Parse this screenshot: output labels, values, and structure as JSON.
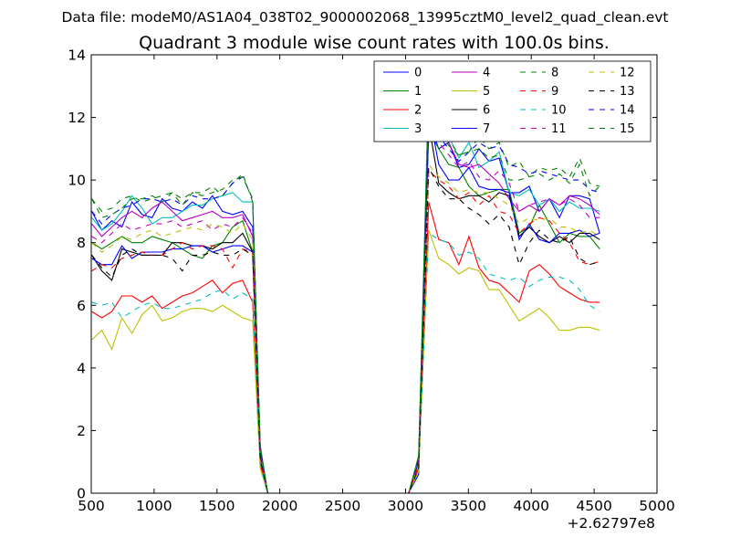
{
  "figure": {
    "supertitle": "Data file: modeM0/AS1A04_038T02_9000002068_13995cztM0_level2_quad_clean.evt"
  },
  "chart_data": {
    "type": "line",
    "title": "Quadrant 3 module wise count rates with 100.0s bins.",
    "xlabel": "",
    "ylabel": "",
    "x_offset_label": "+2.62797e8",
    "xlim": [
      500,
      5000
    ],
    "ylim": [
      0,
      14
    ],
    "xticks": [
      500,
      1000,
      1500,
      2000,
      2500,
      3000,
      3500,
      4000,
      4500,
      5000
    ],
    "yticks": [
      0,
      2,
      4,
      6,
      8,
      10,
      12,
      14
    ],
    "legend_position": "top-right",
    "legend_columns": 4,
    "x": [
      504,
      584,
      664,
      744,
      824,
      904,
      984,
      1064,
      1144,
      1224,
      1304,
      1384,
      1464,
      1544,
      1624,
      1704,
      1784,
      1844,
      1904,
      1984,
      2064,
      2144,
      2224,
      2304,
      2384,
      2464,
      2544,
      2624,
      2704,
      2784,
      2864,
      2944,
      3024,
      3104,
      3184,
      3264,
      3344,
      3424,
      3504,
      3584,
      3664,
      3744,
      3824,
      3904,
      3984,
      4064,
      4144,
      4224,
      4304,
      4384,
      4464,
      4544
    ],
    "series": [
      {
        "name": "0",
        "color": "#0000ff",
        "dash": "solid",
        "values": [
          9.0,
          8.4,
          8.7,
          8.5,
          9.3,
          8.9,
          8.8,
          9.4,
          9.1,
          9.0,
          9.3,
          9.1,
          9.5,
          9.0,
          8.9,
          9.0,
          8.5,
          1.5,
          0.0,
          0,
          0,
          0,
          0,
          0,
          0,
          0,
          0,
          0,
          0,
          0,
          0,
          0,
          0.0,
          0.6,
          11.9,
          11.0,
          11.2,
          10.4,
          10.5,
          11.0,
          10.6,
          10.7,
          9.6,
          9.6,
          9.8,
          9.0,
          9.4,
          8.8,
          9.5,
          9.5,
          9.4,
          8.3
        ]
      },
      {
        "name": "1",
        "color": "#008000",
        "dash": "solid",
        "values": [
          8.0,
          7.8,
          8.0,
          8.2,
          8.0,
          8.0,
          8.2,
          8.1,
          8.0,
          7.8,
          7.6,
          7.5,
          7.9,
          8.0,
          8.5,
          8.7,
          7.7,
          1.0,
          0.0,
          0,
          0,
          0,
          0,
          0,
          0,
          0,
          0,
          0,
          0,
          0,
          0,
          0,
          0.0,
          0.9,
          11.6,
          11.0,
          10.5,
          10.4,
          9.8,
          9.5,
          9.6,
          9.7,
          9.7,
          8.3,
          8.5,
          9.2,
          8.6,
          8.0,
          8.3,
          8.2,
          8.2,
          7.8
        ]
      },
      {
        "name": "2",
        "color": "#ff0000",
        "dash": "solid",
        "values": [
          5.8,
          5.6,
          5.8,
          6.3,
          6.3,
          6.1,
          6.3,
          5.9,
          6.1,
          6.3,
          6.4,
          6.6,
          6.8,
          6.4,
          6.7,
          6.8,
          6.1,
          0.9,
          0.0,
          0,
          0,
          0,
          0,
          0,
          0,
          0,
          0,
          0,
          0,
          0,
          0,
          0,
          0.0,
          0.8,
          9.3,
          8.1,
          8.0,
          7.3,
          8.2,
          7.2,
          6.8,
          6.7,
          6.4,
          6.1,
          7.1,
          7.3,
          7.0,
          6.6,
          6.4,
          6.2,
          6.1,
          6.1
        ]
      },
      {
        "name": "3",
        "color": "#00bfbf",
        "dash": "solid",
        "values": [
          8.8,
          8.4,
          8.6,
          9.0,
          9.5,
          9.1,
          8.6,
          8.8,
          8.8,
          9.0,
          9.2,
          9.2,
          9.4,
          9.5,
          9.6,
          9.3,
          9.3,
          1.4,
          0.0,
          0,
          0,
          0,
          0,
          0,
          0,
          0,
          0,
          0,
          0,
          0,
          0,
          0,
          0.0,
          1.0,
          13.2,
          12.2,
          11.4,
          10.7,
          11.2,
          10.4,
          10.6,
          10.9,
          9.6,
          9.5,
          9.7,
          9.2,
          9.4,
          9.0,
          9.3,
          9.1,
          9.1,
          9.0
        ]
      },
      {
        "name": "4",
        "color": "#bf00bf",
        "dash": "solid",
        "values": [
          8.6,
          8.2,
          8.5,
          8.8,
          9.0,
          8.8,
          9.1,
          9.3,
          9.0,
          8.7,
          8.8,
          8.9,
          9.0,
          8.8,
          8.8,
          8.9,
          8.2,
          1.3,
          0.0,
          0,
          0,
          0,
          0,
          0,
          0,
          0,
          0,
          0,
          0,
          0,
          0,
          0,
          0.0,
          0.9,
          11.8,
          12.3,
          11.2,
          10.5,
          10.4,
          10.5,
          10.2,
          9.9,
          9.4,
          9.0,
          9.2,
          9.0,
          9.4,
          9.2,
          9.5,
          9.4,
          9.2,
          8.9
        ]
      },
      {
        "name": "5",
        "color": "#bfbf00",
        "dash": "solid",
        "values": [
          4.9,
          5.2,
          4.6,
          5.6,
          5.1,
          5.7,
          6.0,
          5.5,
          5.6,
          5.8,
          5.9,
          5.9,
          5.8,
          6.0,
          5.8,
          5.6,
          5.5,
          0.8,
          0.0,
          0,
          0,
          0,
          0,
          0,
          0,
          0,
          0,
          0,
          0,
          0,
          0,
          0,
          0.0,
          0.7,
          8.4,
          7.5,
          7.3,
          7.0,
          7.2,
          7.1,
          6.5,
          6.5,
          6.0,
          5.5,
          5.7,
          5.9,
          5.6,
          5.2,
          5.2,
          5.3,
          5.3,
          5.2
        ]
      },
      {
        "name": "6",
        "color": "#000000",
        "dash": "solid",
        "values": [
          7.6,
          7.1,
          6.8,
          7.8,
          7.7,
          7.6,
          7.6,
          7.6,
          8.0,
          8.0,
          7.9,
          7.9,
          7.8,
          8.0,
          8.0,
          8.3,
          7.7,
          1.2,
          0.0,
          0,
          0,
          0,
          0,
          0,
          0,
          0,
          0,
          0,
          0,
          0,
          0,
          0,
          0.0,
          1.0,
          11.8,
          9.9,
          9.6,
          9.4,
          9.5,
          9.5,
          9.3,
          9.6,
          9.5,
          8.2,
          8.5,
          8.2,
          8.0,
          8.2,
          8.0,
          8.3,
          8.3,
          8.1
        ]
      },
      {
        "name": "7",
        "color": "#0000ff",
        "dash": "solid",
        "values": [
          7.5,
          7.3,
          7.3,
          7.9,
          7.5,
          7.7,
          7.7,
          7.7,
          7.8,
          7.8,
          7.9,
          7.9,
          7.7,
          7.8,
          7.9,
          7.9,
          7.7,
          1.2,
          0.0,
          0,
          0,
          0,
          0,
          0,
          0,
          0,
          0,
          0,
          0,
          0,
          0,
          0,
          0.0,
          1.0,
          12.2,
          10.5,
          10.0,
          10.0,
          10.4,
          9.8,
          9.7,
          9.7,
          9.6,
          8.1,
          8.6,
          8.1,
          8.0,
          8.3,
          8.3,
          8.4,
          8.2,
          8.3
        ]
      },
      {
        "name": "8",
        "color": "#008000",
        "dash": "dashed",
        "values": [
          9.4,
          9.0,
          9.1,
          9.4,
          9.5,
          9.3,
          9.4,
          9.5,
          9.6,
          9.4,
          9.6,
          9.6,
          9.8,
          9.5,
          9.9,
          10.2,
          9.3,
          1.5,
          0.0,
          0,
          0,
          0,
          0,
          0,
          0,
          0,
          0,
          0,
          0,
          0,
          0,
          0,
          0.0,
          1.2,
          12.8,
          11.9,
          11.3,
          10.8,
          10.9,
          11.4,
          11.0,
          11.2,
          10.4,
          10.6,
          10.1,
          10.4,
          10.3,
          10.4,
          10.1,
          10.7,
          9.9,
          9.8
        ]
      },
      {
        "name": "9",
        "color": "#ff0000",
        "dash": "dashed",
        "values": [
          7.1,
          7.3,
          7.2,
          7.5,
          7.6,
          7.7,
          7.6,
          7.6,
          7.8,
          8.0,
          7.8,
          7.9,
          7.9,
          7.8,
          7.2,
          7.8,
          7.7,
          1.1,
          0.0,
          0,
          0,
          0,
          0,
          0,
          0,
          0,
          0,
          0,
          0,
          0,
          0,
          0,
          0.0,
          0.9,
          10.3,
          10.0,
          9.8,
          9.4,
          9.6,
          9.2,
          9.5,
          9.0,
          8.9,
          8.3,
          8.6,
          8.8,
          8.7,
          8.3,
          8.0,
          7.4,
          7.3,
          7.4
        ]
      },
      {
        "name": "10",
        "color": "#00bfbf",
        "dash": "dashed",
        "values": [
          6.1,
          6.0,
          6.1,
          5.6,
          5.8,
          6.0,
          6.1,
          5.9,
          5.9,
          6.0,
          6.1,
          6.2,
          6.4,
          6.5,
          6.2,
          6.4,
          6.2,
          0.9,
          0.0,
          0,
          0,
          0,
          0,
          0,
          0,
          0,
          0,
          0,
          0,
          0,
          0,
          0,
          0.0,
          0.8,
          8.3,
          8.1,
          8.0,
          7.6,
          7.7,
          7.5,
          7.0,
          6.9,
          6.8,
          6.9,
          6.6,
          6.8,
          6.9,
          6.9,
          6.8,
          6.5,
          6.0,
          5.8
        ]
      },
      {
        "name": "11",
        "color": "#bf00bf",
        "dash": "dashed",
        "values": [
          8.2,
          8.0,
          8.3,
          8.6,
          8.4,
          8.5,
          8.6,
          8.6,
          8.7,
          8.5,
          8.6,
          8.7,
          8.4,
          8.6,
          8.5,
          8.8,
          8.3,
          1.3,
          0.0,
          0,
          0,
          0,
          0,
          0,
          0,
          0,
          0,
          0,
          0,
          0,
          0,
          0,
          0.0,
          1.0,
          11.7,
          11.2,
          10.8,
          10.4,
          10.6,
          10.1,
          10.0,
          10.3,
          9.9,
          9.0,
          9.2,
          9.3,
          9.4,
          9.2,
          9.4,
          9.2,
          8.8,
          8.8
        ]
      },
      {
        "name": "12",
        "color": "#bfbf00",
        "dash": "dashed",
        "values": [
          8.0,
          7.7,
          7.9,
          8.2,
          8.1,
          8.3,
          8.4,
          8.2,
          8.3,
          8.4,
          8.5,
          8.4,
          8.6,
          8.5,
          8.3,
          8.6,
          8.1,
          1.2,
          0.0,
          0,
          0,
          0,
          0,
          0,
          0,
          0,
          0,
          0,
          0,
          0,
          0,
          0,
          0.0,
          0.9,
          10.5,
          10.1,
          9.9,
          9.6,
          9.7,
          9.6,
          9.6,
          9.4,
          9.2,
          8.6,
          8.8,
          8.7,
          8.8,
          8.5,
          8.5,
          8.3,
          8.4,
          8.2
        ]
      },
      {
        "name": "13",
        "color": "#000000",
        "dash": "dashed",
        "values": [
          7.6,
          7.2,
          6.9,
          7.6,
          7.8,
          7.6,
          7.6,
          7.6,
          7.5,
          7.1,
          7.6,
          7.6,
          7.7,
          7.6,
          7.6,
          7.8,
          7.6,
          1.1,
          0.0,
          0,
          0,
          0,
          0,
          0,
          0,
          0,
          0,
          0,
          0,
          0,
          0,
          0,
          0.0,
          0.8,
          10.4,
          9.8,
          9.4,
          9.4,
          9.1,
          8.9,
          8.6,
          8.9,
          8.5,
          7.3,
          8.0,
          8.4,
          8.1,
          8.0,
          8.2,
          7.5,
          7.3,
          7.4
        ]
      },
      {
        "name": "14",
        "color": "#0000ff",
        "dash": "dashed",
        "values": [
          9.0,
          8.6,
          8.9,
          9.1,
          9.2,
          9.4,
          9.4,
          9.3,
          9.4,
          9.2,
          9.5,
          9.4,
          9.4,
          9.5,
          9.9,
          10.1,
          9.4,
          1.4,
          0.0,
          0,
          0,
          0,
          0,
          0,
          0,
          0,
          0,
          0,
          0,
          0,
          0,
          0,
          0.0,
          1.1,
          12.1,
          11.4,
          11.0,
          10.6,
          10.9,
          11.2,
          11.0,
          11.1,
          10.5,
          10.4,
          10.2,
          10.3,
          10.2,
          10.1,
          10.0,
          10.0,
          9.7,
          9.6
        ]
      },
      {
        "name": "15",
        "color": "#008000",
        "dash": "dashed",
        "values": [
          9.4,
          8.8,
          8.9,
          9.1,
          9.4,
          9.4,
          9.5,
          9.3,
          9.6,
          9.2,
          9.6,
          9.5,
          9.6,
          9.7,
          10.0,
          10.1,
          9.4,
          1.5,
          0.0,
          0,
          0,
          0,
          0,
          0,
          0,
          0,
          0,
          0,
          0,
          0,
          0,
          0,
          0.0,
          1.2,
          12.6,
          11.6,
          11.1,
          10.8,
          10.9,
          11.0,
          10.7,
          10.8,
          10.0,
          10.0,
          10.1,
          10.2,
          10.0,
          10.2,
          9.9,
          10.5,
          9.5,
          9.8
        ]
      }
    ]
  }
}
